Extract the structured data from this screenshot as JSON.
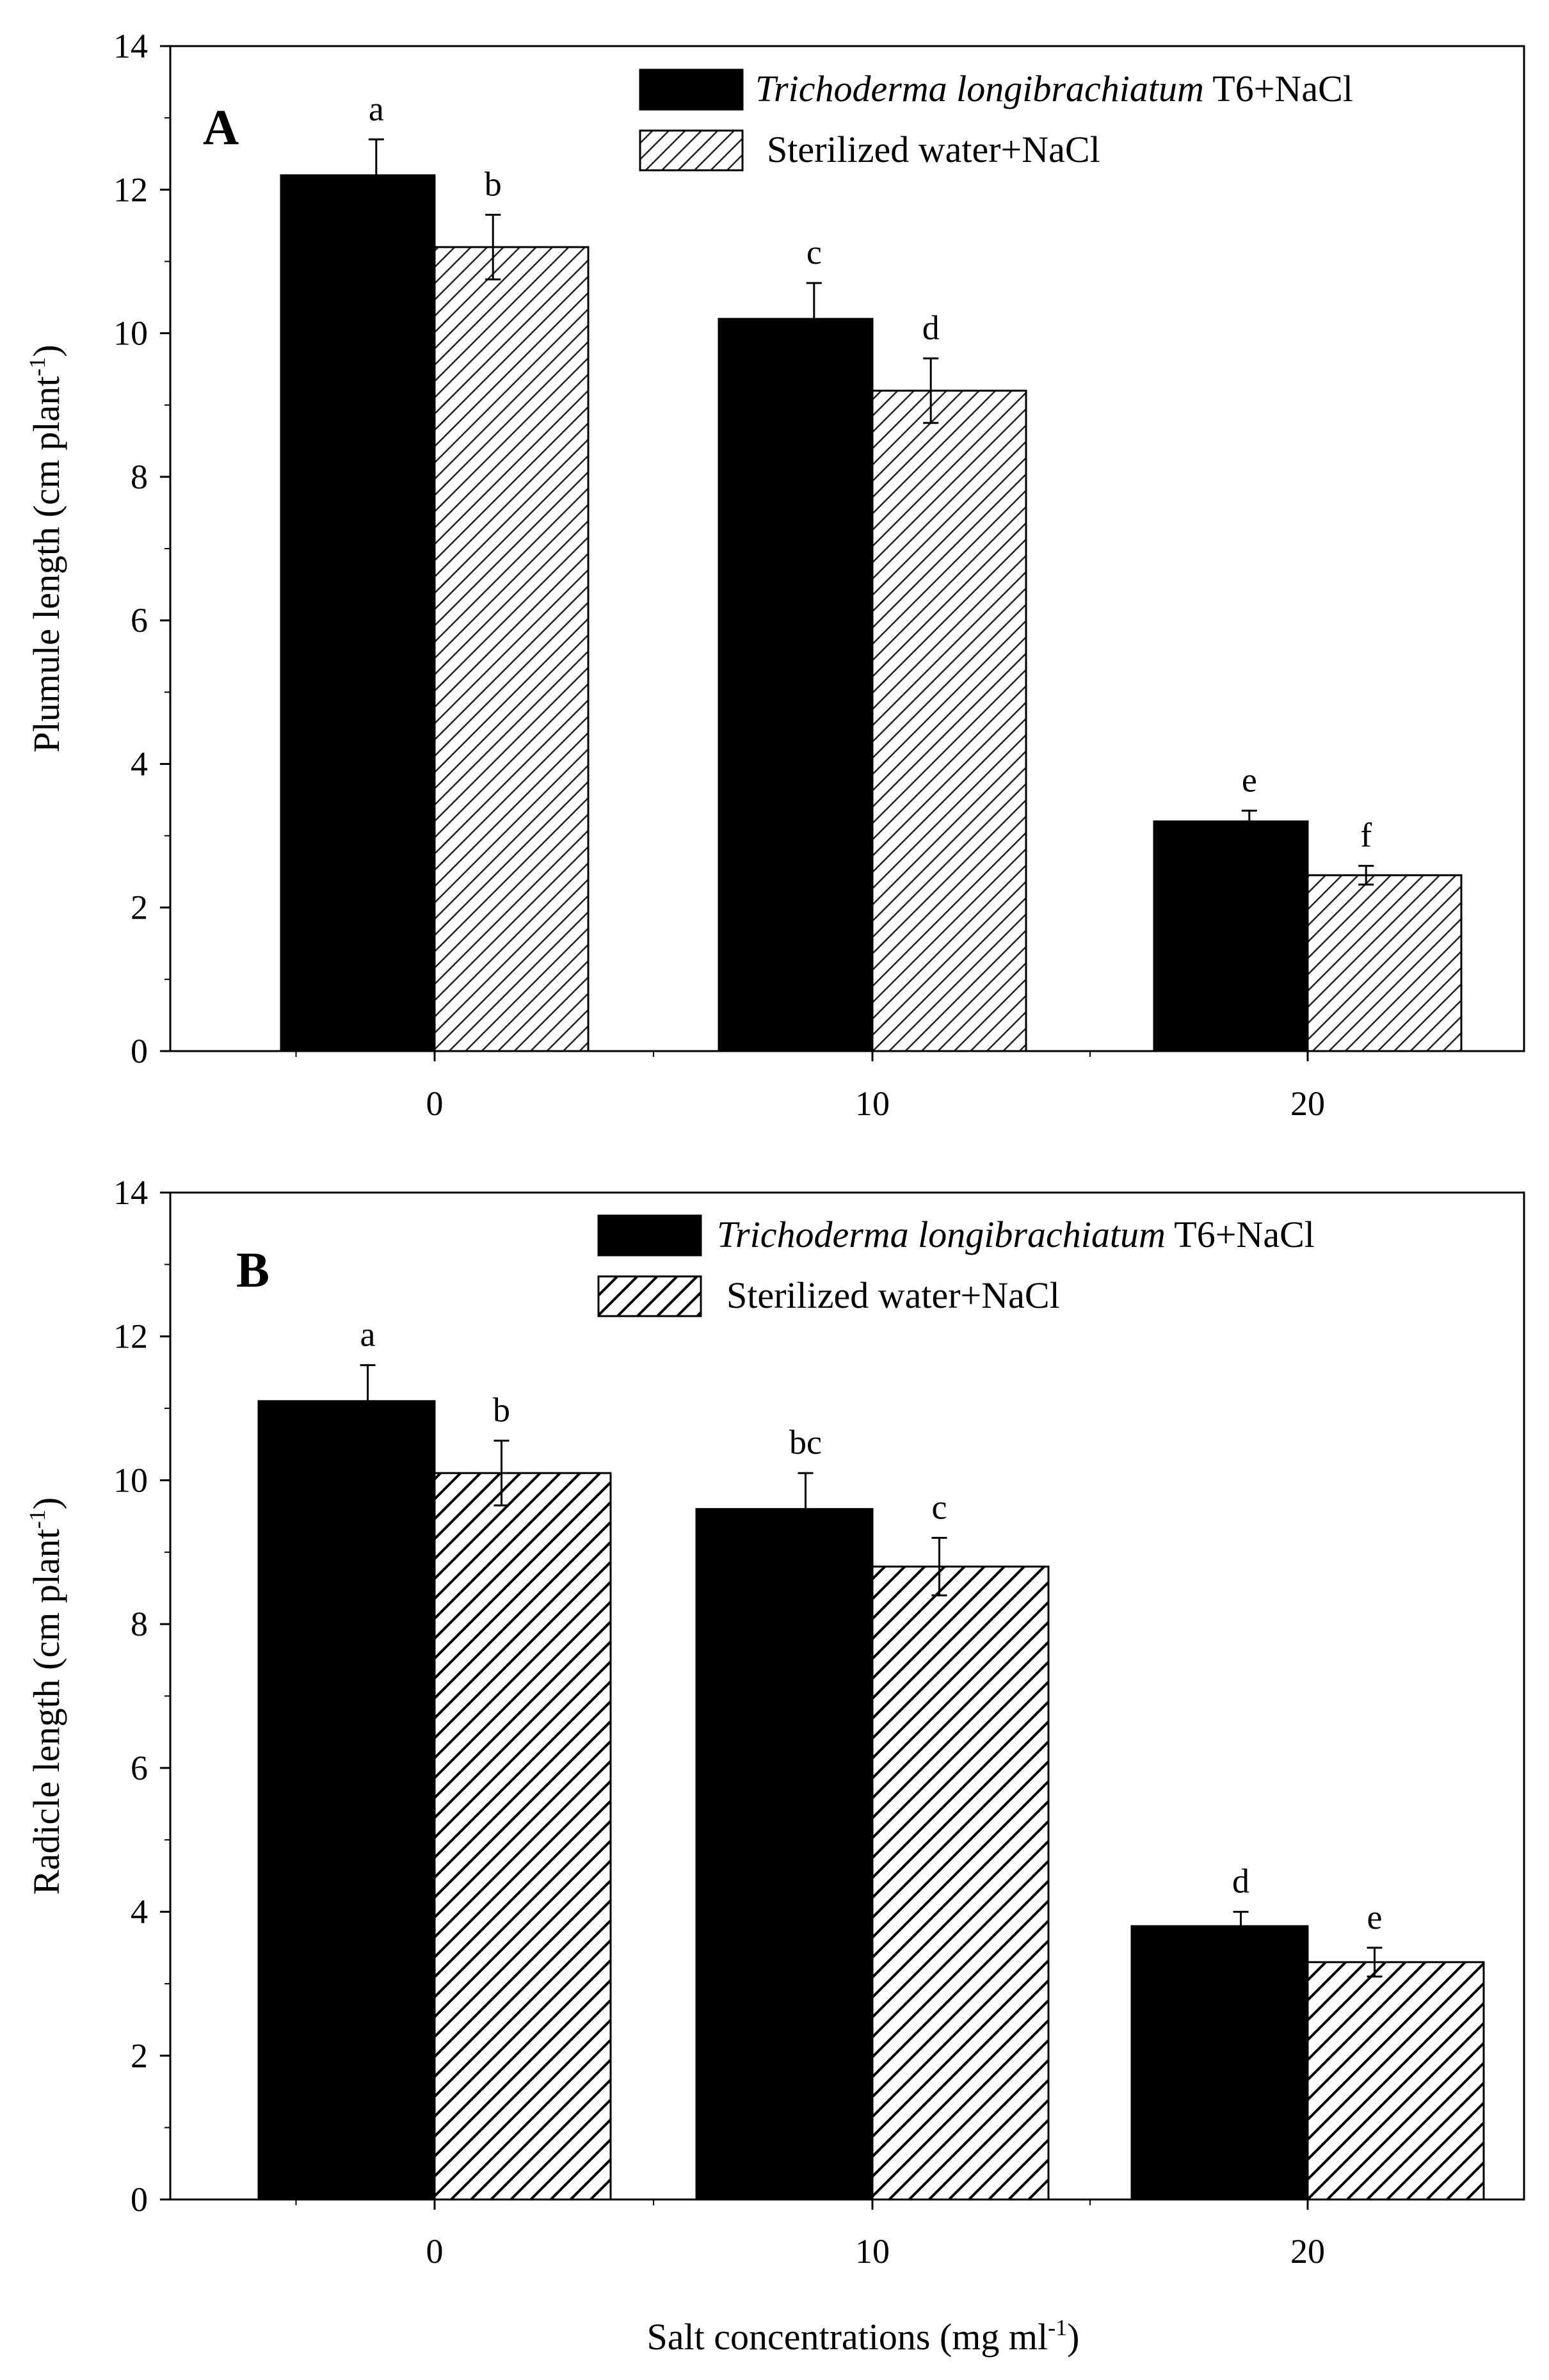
{
  "colors": {
    "treatment_fill": "#000000",
    "control_hatch": "#000000",
    "background": "#ffffff"
  },
  "chart_data": [
    {
      "panel_label": "A",
      "type": "bar",
      "categories": [
        "0",
        "10",
        "20"
      ],
      "series": [
        {
          "name_italic": "Trichoderma longibrachiatum",
          "name_suffix": " T6+NaCl",
          "style": "solid-black",
          "values": [
            12.2,
            10.2,
            3.2
          ],
          "errors": [
            0.5,
            0.5,
            0.15
          ],
          "significance": [
            "a",
            "c",
            "e"
          ]
        },
        {
          "name": "Sterilized water+NaCl",
          "style": "hatched",
          "values": [
            11.2,
            9.2,
            2.45
          ],
          "errors": [
            0.45,
            0.45,
            0.13
          ],
          "significance": [
            "b",
            "d",
            "f"
          ]
        }
      ],
      "ylabel_main": "Plumule length (cm plant",
      "ylabel_sup": "-1",
      "ylabel_close": ")",
      "ylim": [
        0,
        14
      ],
      "yticks": [
        "0",
        "2",
        "4",
        "6",
        "8",
        "10",
        "12",
        "14"
      ],
      "legend_position": "top-right",
      "xlabel": ""
    },
    {
      "panel_label": "B",
      "type": "bar",
      "categories": [
        "0",
        "10",
        "20"
      ],
      "series": [
        {
          "name_italic": "Trichoderma longibrachiatum",
          "name_suffix": " T6+NaCl",
          "style": "solid-black",
          "values": [
            11.1,
            9.6,
            3.8
          ],
          "errors": [
            0.5,
            0.5,
            0.2
          ],
          "significance": [
            "a",
            "bc",
            "d"
          ]
        },
        {
          "name": "Sterilized water+NaCl",
          "style": "hatched",
          "values": [
            10.1,
            8.8,
            3.3
          ],
          "errors": [
            0.45,
            0.4,
            0.2
          ],
          "significance": [
            "b",
            "c",
            "e"
          ]
        }
      ],
      "ylabel_main": "Radicle length (cm plant",
      "ylabel_sup": "-1",
      "ylabel_close": ")",
      "ylim": [
        0,
        14
      ],
      "yticks": [
        "0",
        "2",
        "4",
        "6",
        "8",
        "10",
        "12",
        "14"
      ],
      "legend_position": "top-right",
      "xlabel_main": "Salt concentrations (mg ml",
      "xlabel_sup": "-1",
      "xlabel_close": ")"
    }
  ]
}
